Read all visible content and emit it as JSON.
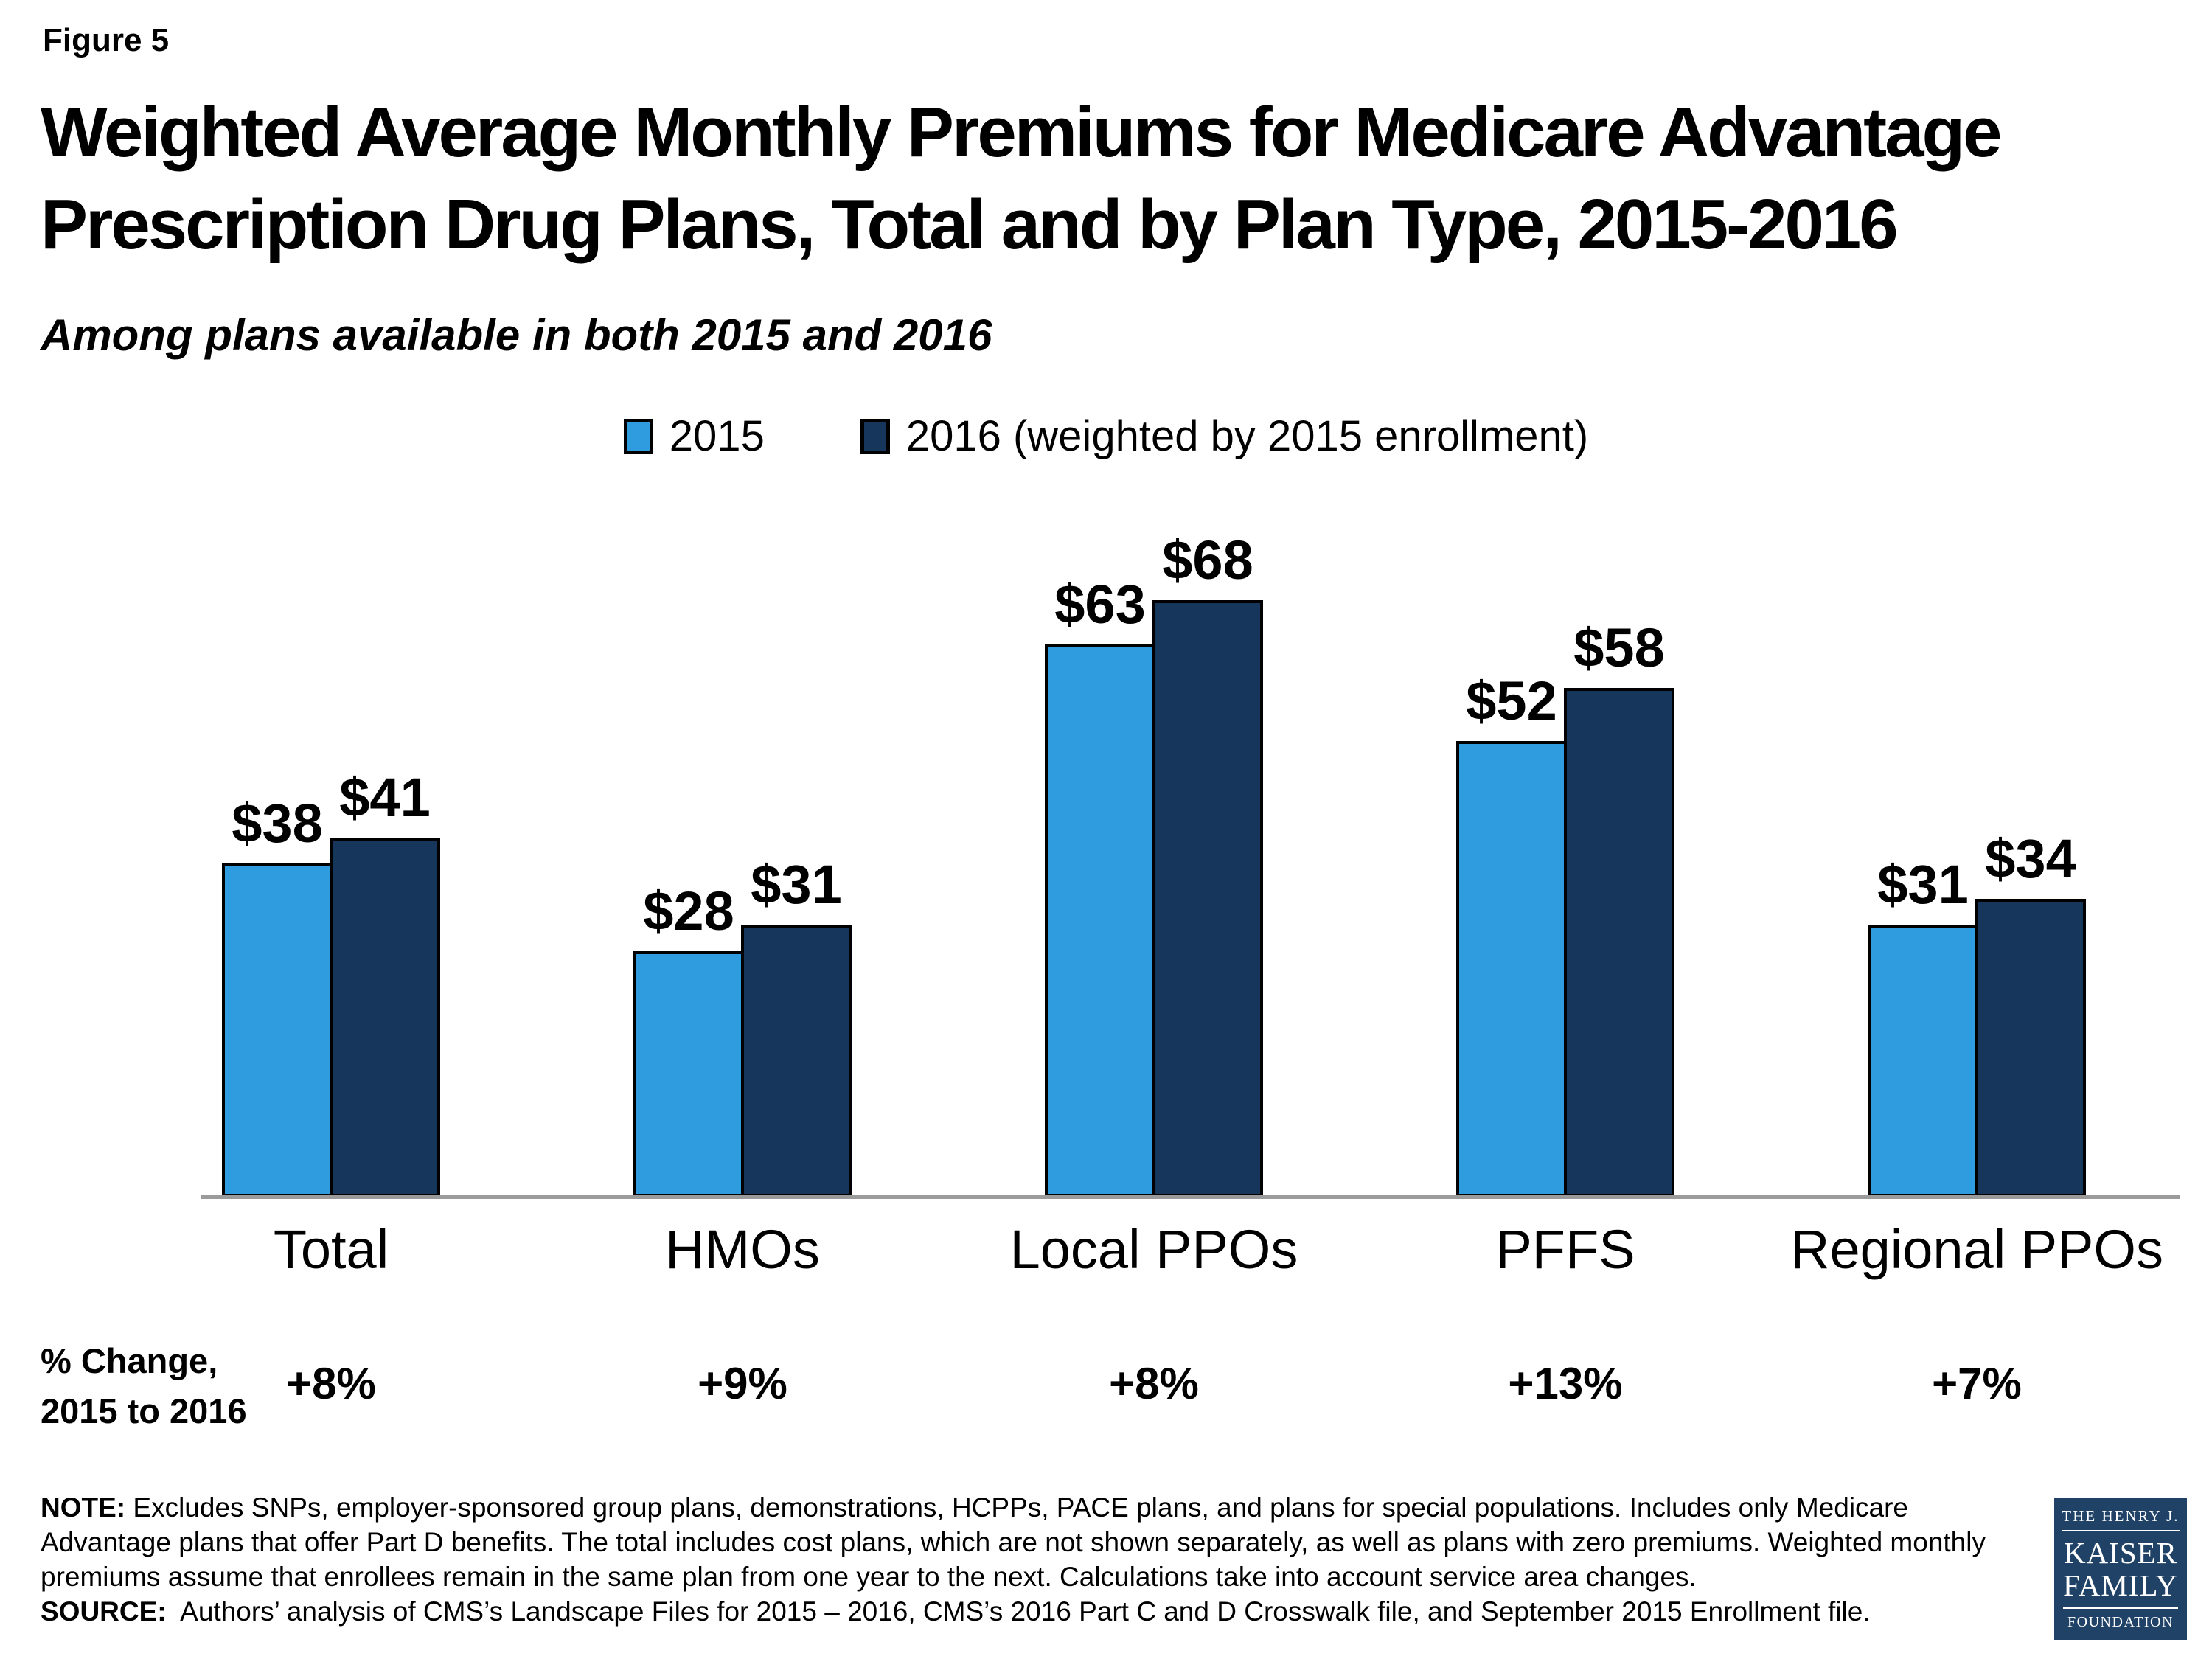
{
  "figure_label": "Figure 5",
  "title_line1": "Weighted Average Monthly Premiums for Medicare Advantage",
  "title_line2": "Prescription Drug Plans, Total and by Plan Type, 2015-2016",
  "subtitle": "Among plans available in both 2015 and 2016",
  "chart_data": {
    "type": "bar",
    "title": "Weighted Average Monthly Premiums for Medicare Advantage Prescription Drug Plans, Total and by Plan Type, 2015-2016",
    "subtitle": "Among plans available in both 2015 and 2016",
    "categories": [
      "Total",
      "HMOs",
      "Local PPOs",
      "PFFS",
      "Regional PPOs"
    ],
    "series": [
      {
        "name": "2015",
        "values": [
          38,
          28,
          63,
          52,
          31
        ],
        "color": "#2E9CDE"
      },
      {
        "name": "2016 (weighted by 2015 enrollment)",
        "values": [
          41,
          31,
          68,
          58,
          34
        ],
        "color": "#16365C"
      }
    ],
    "value_prefix": "$",
    "ylim": [
      0,
      73
    ],
    "grid": false,
    "legend_position": "top-center",
    "pct_change": {
      "label_line1": "% Change,",
      "label_line2": "2015 to 2016",
      "values": [
        "+8%",
        "+9%",
        "+8%",
        "+13%",
        "+7%"
      ]
    }
  },
  "colors": {
    "series_2015": "#2E9CDE",
    "series_2016": "#16365C",
    "axis_line": "#9B9B9B",
    "text": "#000000",
    "logo_background": "#1F4266"
  },
  "note": {
    "label": "NOTE:",
    "text": "Excludes SNPs, employer-sponsored group plans, demonstrations, HCPPs, PACE plans, and plans for special populations.  Includes only Medicare Advantage plans that offer Part D benefits. The total includes cost plans, which are not shown separately, as well as plans with zero premiums. Weighted monthly premiums assume that enrollees remain in the same plan from one year to the next.  Calculations take into account service area changes."
  },
  "source": {
    "label": "SOURCE:",
    "text": "Authors’ analysis of CMS’s Landscape Files for 2015 – 2016, CMS’s 2016 Part C and D Crosswalk file, and September 2015 Enrollment file."
  },
  "logo": {
    "line1": "THE HENRY J.",
    "line2": "KAISER",
    "line3": "FAMILY",
    "line4": "FOUNDATION"
  }
}
